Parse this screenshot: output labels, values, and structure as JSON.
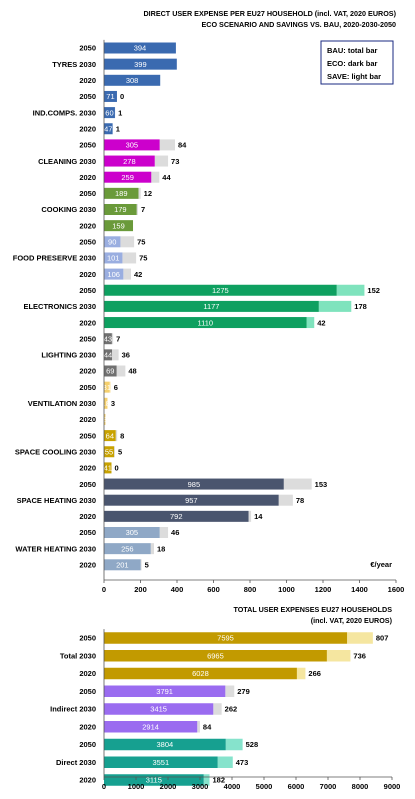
{
  "chart_data": [
    {
      "type": "bar",
      "title": "DIRECT USER EXPENSE PER EU27 HOUSEHOLD (incl. VAT, 2020 EUROS)",
      "subtitle": "ECO SCENARIO AND SAVINGS VS. BAU, 2020-2030-2050",
      "unit_label": "€/year",
      "xlim": [
        0,
        1600
      ],
      "xticks": [
        "0",
        "200",
        "400",
        "600",
        "800",
        "1000",
        "1200",
        "1400",
        "1600"
      ],
      "legend": [
        "BAU: total bar",
        "ECO: dark bar",
        "SAVE: light bar"
      ],
      "legend_position": "top-right",
      "grid": false,
      "groups": [
        {
          "name": "TYRES",
          "color_dark": "#3a6ab0",
          "color_light": "#bfcfe8",
          "rows": [
            {
              "label": "2050",
              "eco": 394,
              "save": null
            },
            {
              "label": "2030",
              "eco": 399,
              "save": null
            },
            {
              "label": "2020",
              "eco": 308,
              "save": null
            }
          ]
        },
        {
          "name": "IND.COMPS.",
          "color_dark": "#3a6ab0",
          "color_light": "#bfcfe8",
          "rows": [
            {
              "label": "2050",
              "eco": 71,
              "save": 0
            },
            {
              "label": "2030",
              "eco": 60,
              "save": 1
            },
            {
              "label": "2020",
              "eco": 47,
              "save": 1
            }
          ]
        },
        {
          "name": "CLEANING",
          "color_dark": "#cc00cc",
          "color_light": "#dcdcdc",
          "rows": [
            {
              "label": "2050",
              "eco": 305,
              "save": 84
            },
            {
              "label": "2030",
              "eco": 278,
              "save": 73
            },
            {
              "label": "2020",
              "eco": 259,
              "save": 44
            }
          ]
        },
        {
          "name": "COOKING",
          "color_dark": "#6a9a3a",
          "color_light": "#dcdcdc",
          "rows": [
            {
              "label": "2050",
              "eco": 189,
              "save": 12
            },
            {
              "label": "2030",
              "eco": 179,
              "save": 7
            },
            {
              "label": "2020",
              "eco": 159,
              "save": null
            }
          ]
        },
        {
          "name": "FOOD PRESERVE",
          "color_dark": "#9aaee0",
          "color_light": "#dcdcdc",
          "rows": [
            {
              "label": "2050",
              "eco": 90,
              "save": 75
            },
            {
              "label": "2030",
              "eco": 101,
              "save": 75
            },
            {
              "label": "2020",
              "eco": 106,
              "save": 42
            }
          ]
        },
        {
          "name": "ELECTRONICS",
          "color_dark": "#0ea060",
          "color_light": "#7fe3bd",
          "rows": [
            {
              "label": "2050",
              "eco": 1275,
              "save": 152
            },
            {
              "label": "2030",
              "eco": 1177,
              "save": 178
            },
            {
              "label": "2020",
              "eco": 1110,
              "save": 42
            }
          ]
        },
        {
          "name": "LIGHTING",
          "color_dark": "#707070",
          "color_light": "#dcdcdc",
          "rows": [
            {
              "label": "2050",
              "eco": 43,
              "save": 7
            },
            {
              "label": "2030",
              "eco": 44,
              "save": 36
            },
            {
              "label": "2020",
              "eco": 69,
              "save": 48
            }
          ]
        },
        {
          "name": "VENTILATION",
          "color_dark": "#f5d06e",
          "color_light": "#fbecc0",
          "rows": [
            {
              "label": "2050",
              "eco": 31,
              "save": 6
            },
            {
              "label": "2030",
              "eco": 18,
              "save": 3
            },
            {
              "label": "2020",
              "eco": 8,
              "save": null
            }
          ]
        },
        {
          "name": "SPACE COOLING",
          "color_dark": "#c8a200",
          "color_light": "#dcdcdc",
          "rows": [
            {
              "label": "2050",
              "eco": 64,
              "save": 8
            },
            {
              "label": "2030",
              "eco": 55,
              "save": 5
            },
            {
              "label": "2020",
              "eco": 41,
              "save": 0
            }
          ]
        },
        {
          "name": "SPACE HEATING",
          "color_dark": "#4a556e",
          "color_light": "#dcdcdc",
          "rows": [
            {
              "label": "2050",
              "eco": 985,
              "save": 153
            },
            {
              "label": "2030",
              "eco": 957,
              "save": 78
            },
            {
              "label": "2020",
              "eco": 792,
              "save": 14
            }
          ]
        },
        {
          "name": "WATER HEATING",
          "color_dark": "#8fa8c6",
          "color_light": "#dcdcdc",
          "rows": [
            {
              "label": "2050",
              "eco": 305,
              "save": 46
            },
            {
              "label": "2030",
              "eco": 256,
              "save": 18
            },
            {
              "label": "2020",
              "eco": 201,
              "save": 5
            }
          ]
        }
      ]
    },
    {
      "type": "bar",
      "title": "TOTAL USER EXPENSES EU27 HOUSEHOLDS",
      "subtitle": "(incl. VAT, 2020 EUROS)",
      "xlim": [
        0,
        9000
      ],
      "xticks": [
        "0",
        "1000",
        "2000",
        "3000",
        "4000",
        "5000",
        "6000",
        "7000",
        "8000",
        "9000"
      ],
      "grid": false,
      "groups": [
        {
          "name": "Total",
          "color_dark": "#c29a00",
          "color_light": "#f5e6a0",
          "rows": [
            {
              "label": "2050",
              "eco": 7595,
              "save": 807
            },
            {
              "label": "2030",
              "eco": 6965,
              "save": 736
            },
            {
              "label": "2020",
              "eco": 6028,
              "save": 266
            }
          ]
        },
        {
          "name": "Indirect",
          "color_dark": "#9a6cf0",
          "color_light": "#dcdcdc",
          "rows": [
            {
              "label": "2050",
              "eco": 3791,
              "save": 279
            },
            {
              "label": "2030",
              "eco": 3415,
              "save": 262
            },
            {
              "label": "2020",
              "eco": 2914,
              "save": 84
            }
          ]
        },
        {
          "name": "Direct",
          "color_dark": "#16a090",
          "color_light": "#86e3cc",
          "rows": [
            {
              "label": "2050",
              "eco": 3804,
              "save": 528
            },
            {
              "label": "2030",
              "eco": 3551,
              "save": 473
            },
            {
              "label": "2020",
              "eco": 3115,
              "save": 182
            }
          ]
        }
      ]
    }
  ]
}
